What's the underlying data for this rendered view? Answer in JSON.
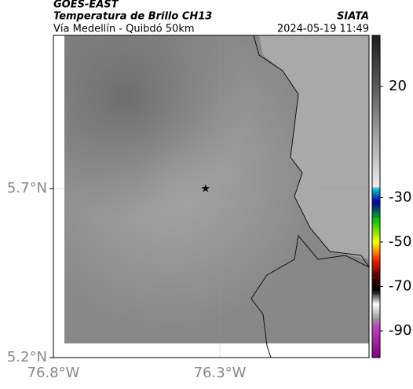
{
  "header": {
    "title": "GOES-EAST",
    "subtitle": "Temperatura de Brillo CH13",
    "source": "SIATA",
    "route": "Vía Medellín - Quibdó 50km",
    "datetime": "2024-05-19 11:49"
  },
  "map": {
    "xlim": [
      -76.8,
      -75.852
    ],
    "ylim": [
      5.2,
      6.153
    ],
    "xticks": [
      {
        "value": -76.8,
        "label": "76.8°W"
      },
      {
        "value": -76.3,
        "label": "76.3°W"
      }
    ],
    "yticks": [
      {
        "value": 5.2,
        "label": "5.2°N"
      },
      {
        "value": 5.7,
        "label": "5.7°N"
      }
    ],
    "grid": true,
    "point": {
      "x": -76.343,
      "y": 5.7
    }
  },
  "colorbar": {
    "lim": [
      -102,
      43
    ],
    "ticks": [
      20,
      -30,
      -50,
      -70,
      -90
    ],
    "colormap": [
      {
        "value": 43,
        "color": "#1e1e1e"
      },
      {
        "value": 20,
        "color": "#5a5a5a"
      },
      {
        "value": -25,
        "color": "#ececec"
      },
      {
        "value": -26,
        "color": "#00c8d8"
      },
      {
        "value": -32,
        "color": "#0000a0"
      },
      {
        "value": -40,
        "color": "#00c000"
      },
      {
        "value": -50,
        "color": "#ffff00"
      },
      {
        "value": -58,
        "color": "#ff2000"
      },
      {
        "value": -66,
        "color": "#400000"
      },
      {
        "value": -72,
        "color": "#000000"
      },
      {
        "value": -78,
        "color": "#ffffff"
      },
      {
        "value": -84,
        "color": "#a0a0a0"
      },
      {
        "value": -88,
        "color": "#c040c0"
      },
      {
        "value": -102,
        "color": "#800080"
      }
    ]
  }
}
